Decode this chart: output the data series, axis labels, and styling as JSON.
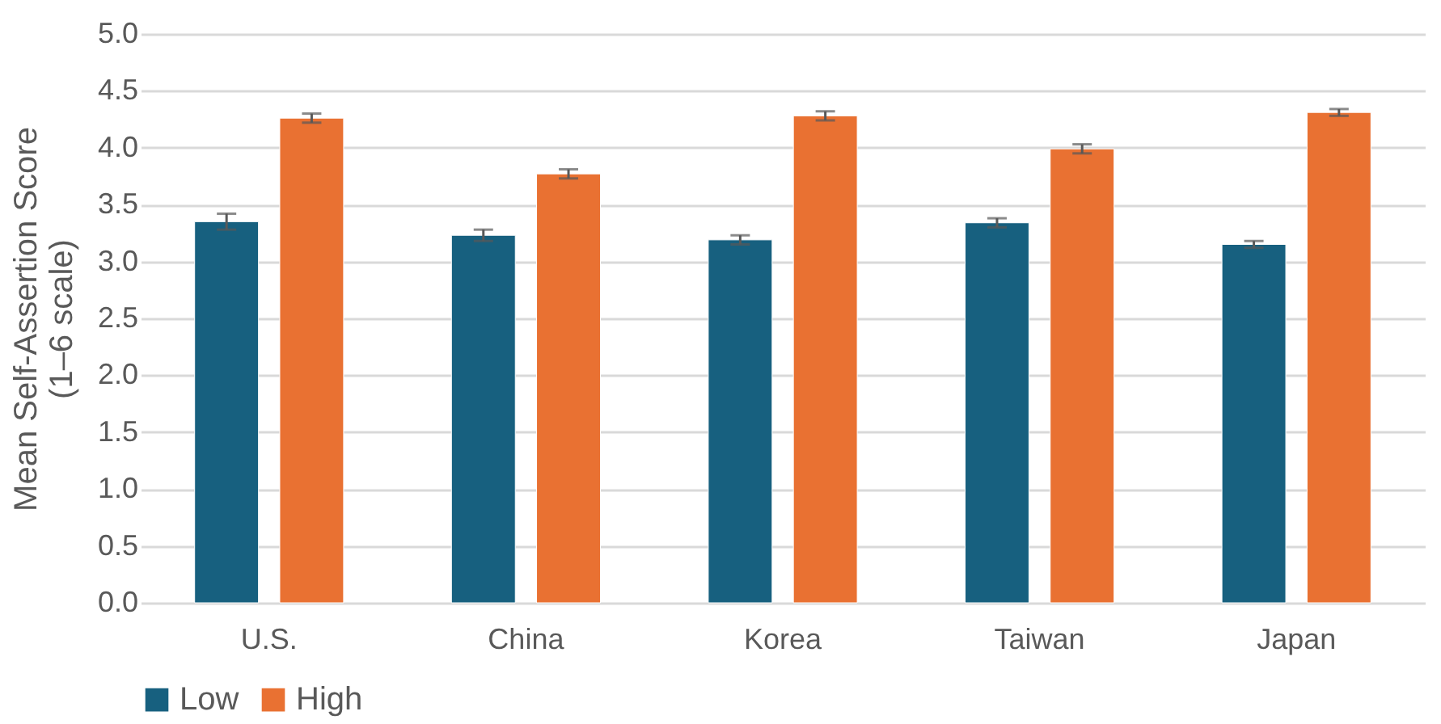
{
  "chart_data": {
    "type": "bar",
    "ylabel": "Mean Self-Assertion Score\n(1–6 scale)",
    "categories": [
      "U.S.",
      "China",
      "Korea",
      "Taiwan",
      "Japan"
    ],
    "series": [
      {
        "name": "Low",
        "color": "#17607f",
        "values": [
          3.35,
          3.23,
          3.19,
          3.34,
          3.15
        ],
        "errors": [
          0.07,
          0.05,
          0.04,
          0.04,
          0.03
        ]
      },
      {
        "name": "High",
        "color": "#e97132",
        "values": [
          4.26,
          3.77,
          4.28,
          3.99,
          4.31
        ],
        "errors": [
          0.04,
          0.04,
          0.04,
          0.04,
          0.03
        ]
      }
    ],
    "ylim": [
      0,
      5
    ],
    "yticks": [
      {
        "value": 0,
        "label": "0.0"
      },
      0.5,
      {
        "value": 1,
        "label": "1.0"
      },
      1.5,
      {
        "value": 2,
        "label": "2.0"
      },
      2.5,
      {
        "value": 3,
        "label": "3.0"
      },
      3.5,
      {
        "value": 4,
        "label": "4.0"
      },
      4.5,
      {
        "value": 5,
        "label": "5.0"
      }
    ],
    "grid": "y",
    "legend": "bottom"
  }
}
